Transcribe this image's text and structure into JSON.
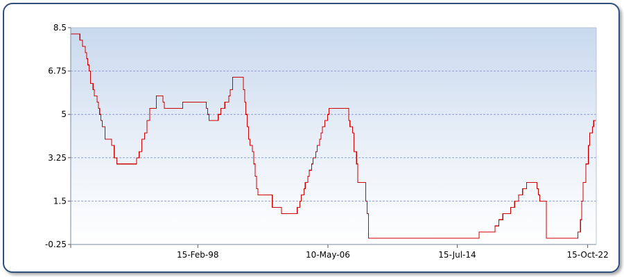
{
  "chart_data": {
    "type": "line",
    "title": "",
    "xlabel": "",
    "ylabel": "",
    "ylim": [
      -0.25,
      8.5
    ],
    "yticks": [
      "8.5",
      "6.75",
      "5",
      "3.25",
      "1.5",
      "-0.25"
    ],
    "xticks": [
      {
        "date": "1998-02-15",
        "label": "15-Feb-98"
      },
      {
        "date": "2006-05-10",
        "label": "10-May-06"
      },
      {
        "date": "2014-07-15",
        "label": "15-Jul-14"
      },
      {
        "date": "2022-10-15",
        "label": "15-Oct-22"
      }
    ],
    "xlim": [
      "1990-02-01",
      "2023-05-01"
    ],
    "grid": true,
    "step": true,
    "series": [
      {
        "name": "",
        "color": "#cc0000",
        "points": [
          [
            "1990-02-01",
            8.25
          ],
          [
            "1990-09-01",
            8.0
          ],
          [
            "1990-11-01",
            7.75
          ],
          [
            "1991-01-01",
            7.5
          ],
          [
            "1991-02-01",
            7.25
          ],
          [
            "1991-03-01",
            7.0
          ],
          [
            "1991-04-01",
            6.75
          ],
          [
            "1991-05-01",
            6.25
          ],
          [
            "1991-07-01",
            6.0
          ],
          [
            "1991-08-01",
            5.75
          ],
          [
            "1991-10-01",
            5.5
          ],
          [
            "1991-11-01",
            5.25
          ],
          [
            "1991-12-01",
            5.0
          ],
          [
            "1992-01-01",
            4.75
          ],
          [
            "1992-02-01",
            4.5
          ],
          [
            "1992-04-01",
            4.0
          ],
          [
            "1992-09-01",
            3.75
          ],
          [
            "1992-11-01",
            3.25
          ],
          [
            "1993-01-01",
            3.0
          ],
          [
            "1994-04-01",
            3.25
          ],
          [
            "1994-06-01",
            3.5
          ],
          [
            "1994-08-01",
            4.0
          ],
          [
            "1994-10-01",
            4.25
          ],
          [
            "1994-12-01",
            4.75
          ],
          [
            "1995-02-01",
            5.25
          ],
          [
            "1995-07-01",
            5.75
          ],
          [
            "1995-12-01",
            5.5
          ],
          [
            "1996-01-01",
            5.25
          ],
          [
            "1997-03-01",
            5.5
          ],
          [
            "1998-09-01",
            5.25
          ],
          [
            "1998-10-01",
            5.0
          ],
          [
            "1998-11-01",
            4.75
          ],
          [
            "1999-06-01",
            5.0
          ],
          [
            "1999-08-01",
            5.25
          ],
          [
            "1999-11-01",
            5.5
          ],
          [
            "2000-02-01",
            5.75
          ],
          [
            "2000-03-01",
            6.0
          ],
          [
            "2000-05-01",
            6.5
          ],
          [
            "2001-01-01",
            6.0
          ],
          [
            "2001-02-01",
            5.5
          ],
          [
            "2001-03-01",
            5.0
          ],
          [
            "2001-04-01",
            4.5
          ],
          [
            "2001-05-01",
            4.0
          ],
          [
            "2001-06-01",
            3.75
          ],
          [
            "2001-08-01",
            3.5
          ],
          [
            "2001-09-01",
            3.0
          ],
          [
            "2001-10-01",
            2.5
          ],
          [
            "2001-11-01",
            2.0
          ],
          [
            "2001-12-01",
            1.75
          ],
          [
            "2002-11-01",
            1.25
          ],
          [
            "2003-06-01",
            1.0
          ],
          [
            "2004-06-01",
            1.25
          ],
          [
            "2004-08-01",
            1.5
          ],
          [
            "2004-09-01",
            1.75
          ],
          [
            "2004-11-01",
            2.0
          ],
          [
            "2004-12-01",
            2.25
          ],
          [
            "2005-02-01",
            2.5
          ],
          [
            "2005-03-01",
            2.75
          ],
          [
            "2005-05-01",
            3.0
          ],
          [
            "2005-06-01",
            3.25
          ],
          [
            "2005-08-01",
            3.5
          ],
          [
            "2005-09-01",
            3.75
          ],
          [
            "2005-11-01",
            4.0
          ],
          [
            "2005-12-01",
            4.25
          ],
          [
            "2006-01-01",
            4.5
          ],
          [
            "2006-03-01",
            4.75
          ],
          [
            "2006-05-01",
            5.0
          ],
          [
            "2006-06-01",
            5.25
          ],
          [
            "2007-09-01",
            4.75
          ],
          [
            "2007-10-01",
            4.5
          ],
          [
            "2007-12-01",
            4.25
          ],
          [
            "2008-01-01",
            3.5
          ],
          [
            "2008-03-01",
            3.0
          ],
          [
            "2008-04-01",
            2.25
          ],
          [
            "2008-10-01",
            1.5
          ],
          [
            "2008-11-01",
            1.0
          ],
          [
            "2008-12-01",
            0.0
          ],
          [
            "2015-12-01",
            0.25
          ],
          [
            "2016-12-01",
            0.5
          ],
          [
            "2017-03-01",
            0.75
          ],
          [
            "2017-06-01",
            1.0
          ],
          [
            "2017-12-01",
            1.25
          ],
          [
            "2018-03-01",
            1.5
          ],
          [
            "2018-06-01",
            1.75
          ],
          [
            "2018-09-01",
            2.0
          ],
          [
            "2018-12-01",
            2.25
          ],
          [
            "2019-08-01",
            2.0
          ],
          [
            "2019-09-01",
            1.75
          ],
          [
            "2019-10-01",
            1.5
          ],
          [
            "2020-03-01",
            0.0
          ],
          [
            "2022-03-01",
            0.25
          ],
          [
            "2022-05-01",
            0.75
          ],
          [
            "2022-06-01",
            1.5
          ],
          [
            "2022-07-01",
            2.25
          ],
          [
            "2022-09-01",
            3.0
          ],
          [
            "2022-11-01",
            3.75
          ],
          [
            "2022-12-01",
            4.25
          ],
          [
            "2023-02-01",
            4.5
          ],
          [
            "2023-03-01",
            4.75
          ],
          [
            "2023-05-01",
            5.0
          ],
          [
            "2023-07-01",
            5.25
          ],
          [
            "2023-12-31",
            5.25
          ]
        ]
      }
    ]
  }
}
